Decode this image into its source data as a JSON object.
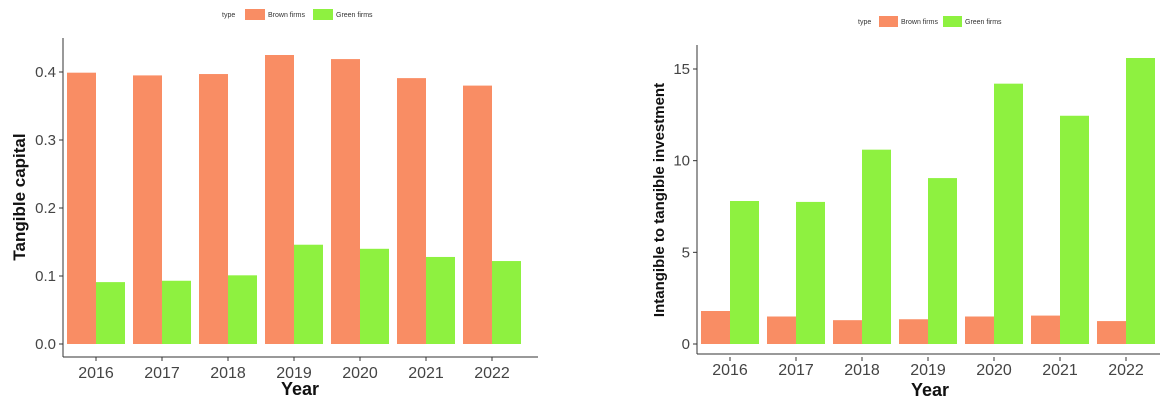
{
  "chart_data": [
    {
      "type": "bar",
      "legend_title": "type",
      "legend_position": "top",
      "grid": false,
      "categories": [
        "2016",
        "2017",
        "2018",
        "2019",
        "2020",
        "2021",
        "2022"
      ],
      "series": [
        {
          "name": "Brown firms",
          "color": "#F98D64",
          "values": [
            0.399,
            0.395,
            0.397,
            0.425,
            0.419,
            0.391,
            0.38
          ]
        },
        {
          "name": "Green firms",
          "color": "#8EF140",
          "values": [
            0.091,
            0.093,
            0.101,
            0.146,
            0.14,
            0.128,
            0.122
          ]
        }
      ],
      "xlabel": "Year",
      "ylabel": "Tangible capital",
      "ylim": [
        0,
        0.445
      ],
      "yticks": [
        "0.0",
        "0.1",
        "0.2",
        "0.3",
        "0.4"
      ]
    },
    {
      "type": "bar",
      "legend_title": "type",
      "legend_position": "top",
      "grid": false,
      "categories": [
        "2016",
        "2017",
        "2018",
        "2019",
        "2020",
        "2021",
        "2022"
      ],
      "series": [
        {
          "name": "Brown firms",
          "color": "#F98D64",
          "values": [
            1.8,
            1.5,
            1.3,
            1.35,
            1.5,
            1.55,
            1.25
          ]
        },
        {
          "name": "Green firms",
          "color": "#8EF140",
          "values": [
            7.8,
            7.75,
            10.6,
            9.05,
            14.2,
            12.45,
            15.6
          ]
        }
      ],
      "xlabel": "Year",
      "ylabel": "Intangible to tangible investment",
      "ylim": [
        0,
        16.2
      ],
      "yticks": [
        "0",
        "5",
        "10",
        "15"
      ]
    }
  ]
}
